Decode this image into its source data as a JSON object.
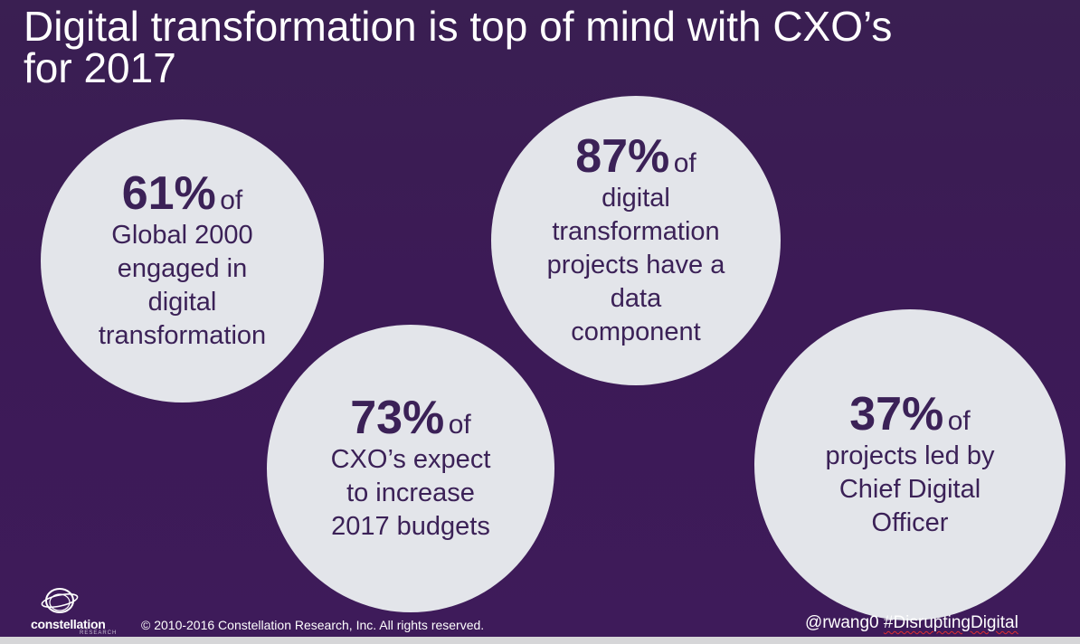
{
  "slide": {
    "title_line1": "Digital transformation is top of mind with CXO’s",
    "title_line2": "for 2017"
  },
  "stats": [
    {
      "value": "61%",
      "connector": "of",
      "lines": [
        "Global 2000",
        "engaged in",
        "digital",
        "transformation"
      ]
    },
    {
      "value": "87%",
      "connector": "of",
      "lines": [
        "digital",
        "transformation",
        "projects have a",
        "data",
        "component"
      ]
    },
    {
      "value": "73%",
      "connector": "of",
      "lines": [
        "CXO’s expect",
        "to increase",
        "2017 budgets"
      ]
    },
    {
      "value": "37%",
      "connector": "of",
      "lines": [
        "projects led by",
        "Chief Digital",
        "Officer"
      ]
    }
  ],
  "footer": {
    "logo_text": "constellation",
    "logo_sub": "RESEARCH",
    "copyright": "© 2010-2016 Constellation Research, Inc. All rights reserved.",
    "handle": "@rwang0 ",
    "hashtag": "#DisruptingDigital"
  },
  "colors": {
    "background": "#3c1a56",
    "circle": "#e3e5ea",
    "circle_text": "#3b2157",
    "title_text": "#ffffff"
  }
}
